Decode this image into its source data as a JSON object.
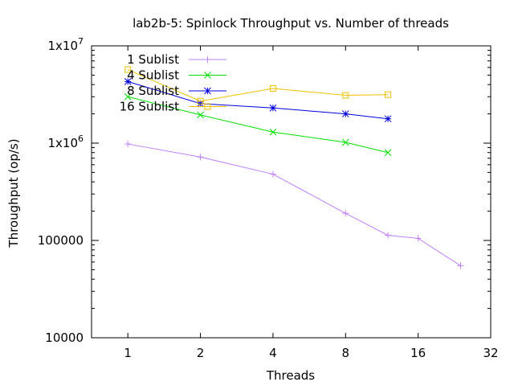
{
  "chart_data": {
    "type": "line",
    "title": "lab2b-5: Spinlock Throughput vs. Number of threads",
    "xlabel": "Threads",
    "ylabel": "Throughput (op/s)",
    "xscale": "log2",
    "yscale": "log10",
    "xlim": [
      0.707,
      32
    ],
    "ylim": [
      10000,
      10000000
    ],
    "xticks": [
      1,
      2,
      4,
      8,
      16,
      32
    ],
    "xtick_labels": [
      "1",
      "2",
      "4",
      "8",
      "16",
      "32"
    ],
    "yticks": [
      {
        "value": 10000,
        "base": "10000",
        "sup": ""
      },
      {
        "value": 100000,
        "base": "100000",
        "sup": ""
      },
      {
        "value": 1000000,
        "base": "1x10",
        "sup": "6"
      },
      {
        "value": 10000000,
        "base": "1x10",
        "sup": "7"
      }
    ],
    "legend_position": "top-left",
    "series": [
      {
        "name": "1 Sublist",
        "color": "#c080ff",
        "marker": "plus",
        "x": [
          1,
          2,
          4,
          8,
          12,
          16,
          24
        ],
        "y": [
          980000,
          720000,
          480000,
          190000,
          113000,
          105000,
          55000
        ]
      },
      {
        "name": "4 Sublist",
        "color": "#00e000",
        "marker": "cross",
        "x": [
          1,
          2,
          4,
          8,
          12
        ],
        "y": [
          3000000,
          1950000,
          1300000,
          1020000,
          800000
        ]
      },
      {
        "name": "8 Sublist",
        "color": "#0000e0",
        "marker": "star",
        "x": [
          1,
          2,
          4,
          8,
          12
        ],
        "y": [
          4300000,
          2550000,
          2300000,
          2000000,
          1780000
        ]
      },
      {
        "name": "16 Sublist",
        "color": "#f0c000",
        "marker": "square",
        "x": [
          1,
          2,
          4,
          8,
          12
        ],
        "y": [
          5700000,
          2700000,
          3650000,
          3100000,
          3150000
        ]
      }
    ]
  }
}
